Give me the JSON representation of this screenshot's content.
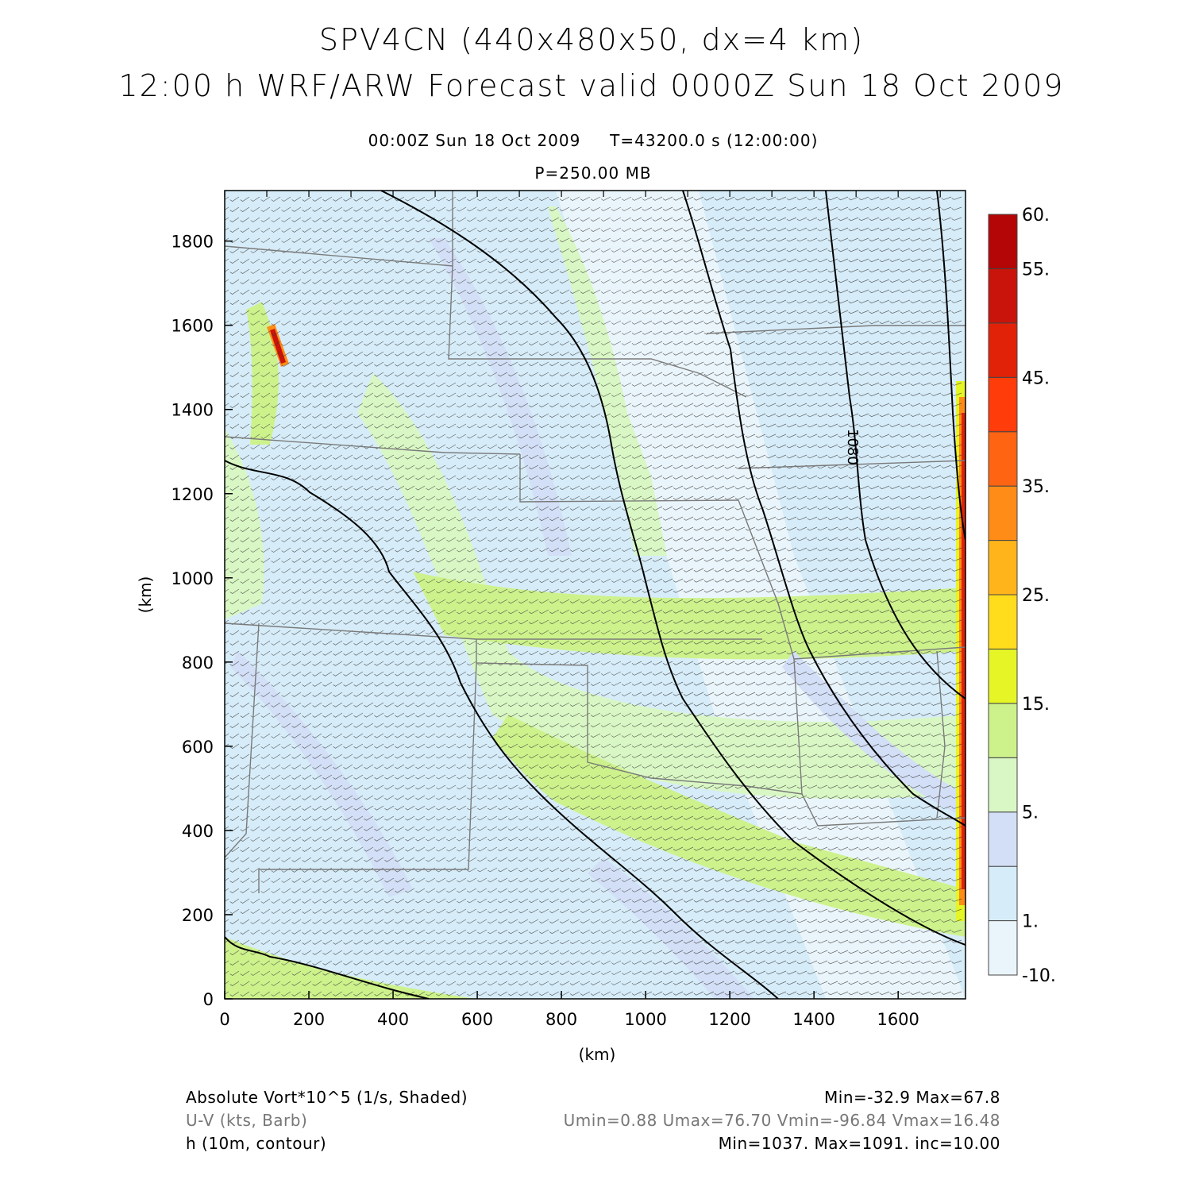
{
  "header": {
    "title_line1": "SPV4CN (440x480x50, dx=4 km)",
    "title_line2": "12:00 h WRF/ARW Forecast valid 0000Z Sun 18 Oct 2009",
    "time_line": "00:00Z Sun 18 Oct 2009     T=43200.0 s (12:00:00)",
    "level_line": "P=250.00 MB"
  },
  "chart_data": {
    "type": "heatmap",
    "xlabel": "(km)",
    "ylabel": "(km)",
    "xlim": [
      0,
      1760
    ],
    "ylim": [
      0,
      1920
    ],
    "xticks": [
      0,
      200,
      400,
      600,
      800,
      1000,
      1200,
      1400,
      1600
    ],
    "yticks": [
      0,
      200,
      400,
      600,
      800,
      1000,
      1200,
      1400,
      1600,
      1800
    ],
    "colorbar": {
      "levels": [
        -10,
        1,
        3,
        5,
        10,
        15,
        20,
        25,
        30,
        35,
        40,
        45,
        50,
        55,
        60
      ],
      "tick_labels": [
        "-10.",
        "1.",
        "5.",
        "15.",
        "25.",
        "35.",
        "45.",
        "55.",
        "60."
      ],
      "colors": [
        "#eaf5fb",
        "#d6ecf8",
        "#d3dff6",
        "#d9f7c4",
        "#cdf28c",
        "#e6f525",
        "#ffdc1c",
        "#feb41a",
        "#fe8c17",
        "#fe6412",
        "#ff3c0a",
        "#e12209",
        "#c8140a",
        "#b40606"
      ]
    },
    "contour_label": "1080",
    "fields": [
      {
        "name": "Absolute Vort*10^5 (1/s, Shaded)",
        "stats": "Min=-32.9 Max=67.8"
      },
      {
        "name": "U-V (kts, Barb)",
        "stats": "Umin=0.88 Umax=76.70 Vmin=-96.84 Vmax=16.48"
      },
      {
        "name": "h (10m, contour)",
        "stats": "Min=1037. Max=1091. inc=10.00"
      }
    ]
  }
}
